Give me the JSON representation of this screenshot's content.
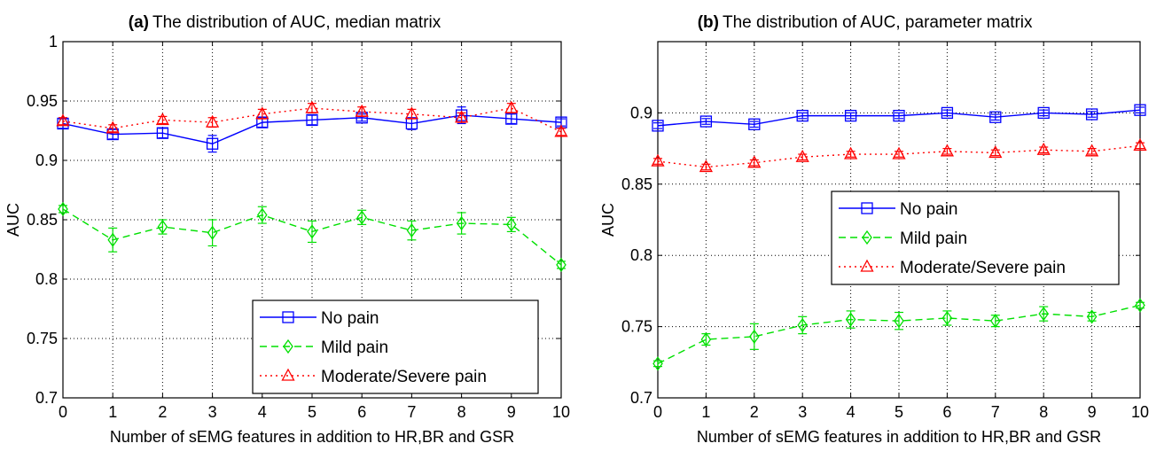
{
  "chart_data": [
    {
      "type": "line",
      "panel": "(a)",
      "title": "The distribution of AUC, median matrix",
      "xlabel": "Number of sEMG features in addition to HR,BR and GSR",
      "ylabel": "AUC",
      "xlim": [
        0,
        10
      ],
      "ylim": [
        0.7,
        1.0
      ],
      "xticks": [
        0,
        1,
        2,
        3,
        4,
        5,
        6,
        7,
        8,
        9,
        10
      ],
      "yticks": [
        0.7,
        0.75,
        0.8,
        0.85,
        0.9,
        0.95,
        1
      ],
      "ytick_labels": [
        "0.7",
        "0.75",
        "0.8",
        "0.85",
        "0.9",
        "0.95",
        "1"
      ],
      "grid": true,
      "legend_position": "bottom-right",
      "x": [
        0,
        1,
        2,
        3,
        4,
        5,
        6,
        7,
        8,
        9,
        10
      ],
      "series": [
        {
          "name": "No pain",
          "color": "#0000ff",
          "marker": "square",
          "linestyle": "solid",
          "values": [
            0.931,
            0.922,
            0.923,
            0.914,
            0.932,
            0.934,
            0.936,
            0.931,
            0.938,
            0.935,
            0.932
          ],
          "errors": [
            0.004,
            0.004,
            0.004,
            0.007,
            0.004,
            0.004,
            0.003,
            0.005,
            0.007,
            0.004,
            0.003
          ]
        },
        {
          "name": "Mild pain",
          "color": "#00e000",
          "marker": "diamond",
          "linestyle": "dashed",
          "values": [
            0.859,
            0.833,
            0.844,
            0.839,
            0.854,
            0.84,
            0.852,
            0.841,
            0.847,
            0.846,
            0.812
          ],
          "errors": [
            0.003,
            0.01,
            0.006,
            0.011,
            0.007,
            0.009,
            0.006,
            0.008,
            0.009,
            0.006,
            0.003
          ]
        },
        {
          "name": "Moderate/Severe pain",
          "color": "#ff0000",
          "marker": "triangle",
          "linestyle": "dotted",
          "values": [
            0.933,
            0.927,
            0.934,
            0.932,
            0.939,
            0.944,
            0.941,
            0.939,
            0.936,
            0.944,
            0.924
          ],
          "errors": [
            0.003,
            0.003,
            0.003,
            0.004,
            0.004,
            0.004,
            0.004,
            0.004,
            0.004,
            0.004,
            0.003
          ]
        }
      ]
    },
    {
      "type": "line",
      "panel": "(b)",
      "title": "The distribution of AUC, parameter matrix",
      "xlabel": "Number of sEMG features in addition to HR,BR and GSR",
      "ylabel": "AUC",
      "xlim": [
        0,
        10
      ],
      "ylim": [
        0.7,
        0.95
      ],
      "xticks": [
        0,
        1,
        2,
        3,
        4,
        5,
        6,
        7,
        8,
        9,
        10
      ],
      "yticks": [
        0.7,
        0.75,
        0.8,
        0.85,
        0.9
      ],
      "ytick_labels": [
        "0.7",
        "0.75",
        "0.8",
        "0.85",
        "0.9"
      ],
      "grid": true,
      "legend_position": "middle-right",
      "x": [
        0,
        1,
        2,
        3,
        4,
        5,
        6,
        7,
        8,
        9,
        10
      ],
      "series": [
        {
          "name": "No pain",
          "color": "#0000ff",
          "marker": "square",
          "linestyle": "solid",
          "values": [
            0.891,
            0.894,
            0.892,
            0.898,
            0.898,
            0.898,
            0.9,
            0.897,
            0.9,
            0.899,
            0.902
          ],
          "errors": [
            0.002,
            0.002,
            0.002,
            0.002,
            0.002,
            0.002,
            0.002,
            0.002,
            0.002,
            0.002,
            0.002
          ]
        },
        {
          "name": "Mild pain",
          "color": "#00e000",
          "marker": "diamond",
          "linestyle": "dashed",
          "values": [
            0.724,
            0.741,
            0.743,
            0.751,
            0.755,
            0.754,
            0.756,
            0.754,
            0.759,
            0.757,
            0.765
          ],
          "errors": [
            0.002,
            0.004,
            0.009,
            0.006,
            0.006,
            0.006,
            0.005,
            0.004,
            0.005,
            0.003,
            0.002
          ]
        },
        {
          "name": "Moderate/Severe pain",
          "color": "#ff0000",
          "marker": "triangle",
          "linestyle": "dotted",
          "values": [
            0.866,
            0.862,
            0.865,
            0.869,
            0.871,
            0.871,
            0.873,
            0.872,
            0.874,
            0.873,
            0.877
          ],
          "errors": [
            0.002,
            0.002,
            0.002,
            0.002,
            0.002,
            0.002,
            0.002,
            0.002,
            0.002,
            0.002,
            0.002
          ]
        }
      ]
    }
  ]
}
